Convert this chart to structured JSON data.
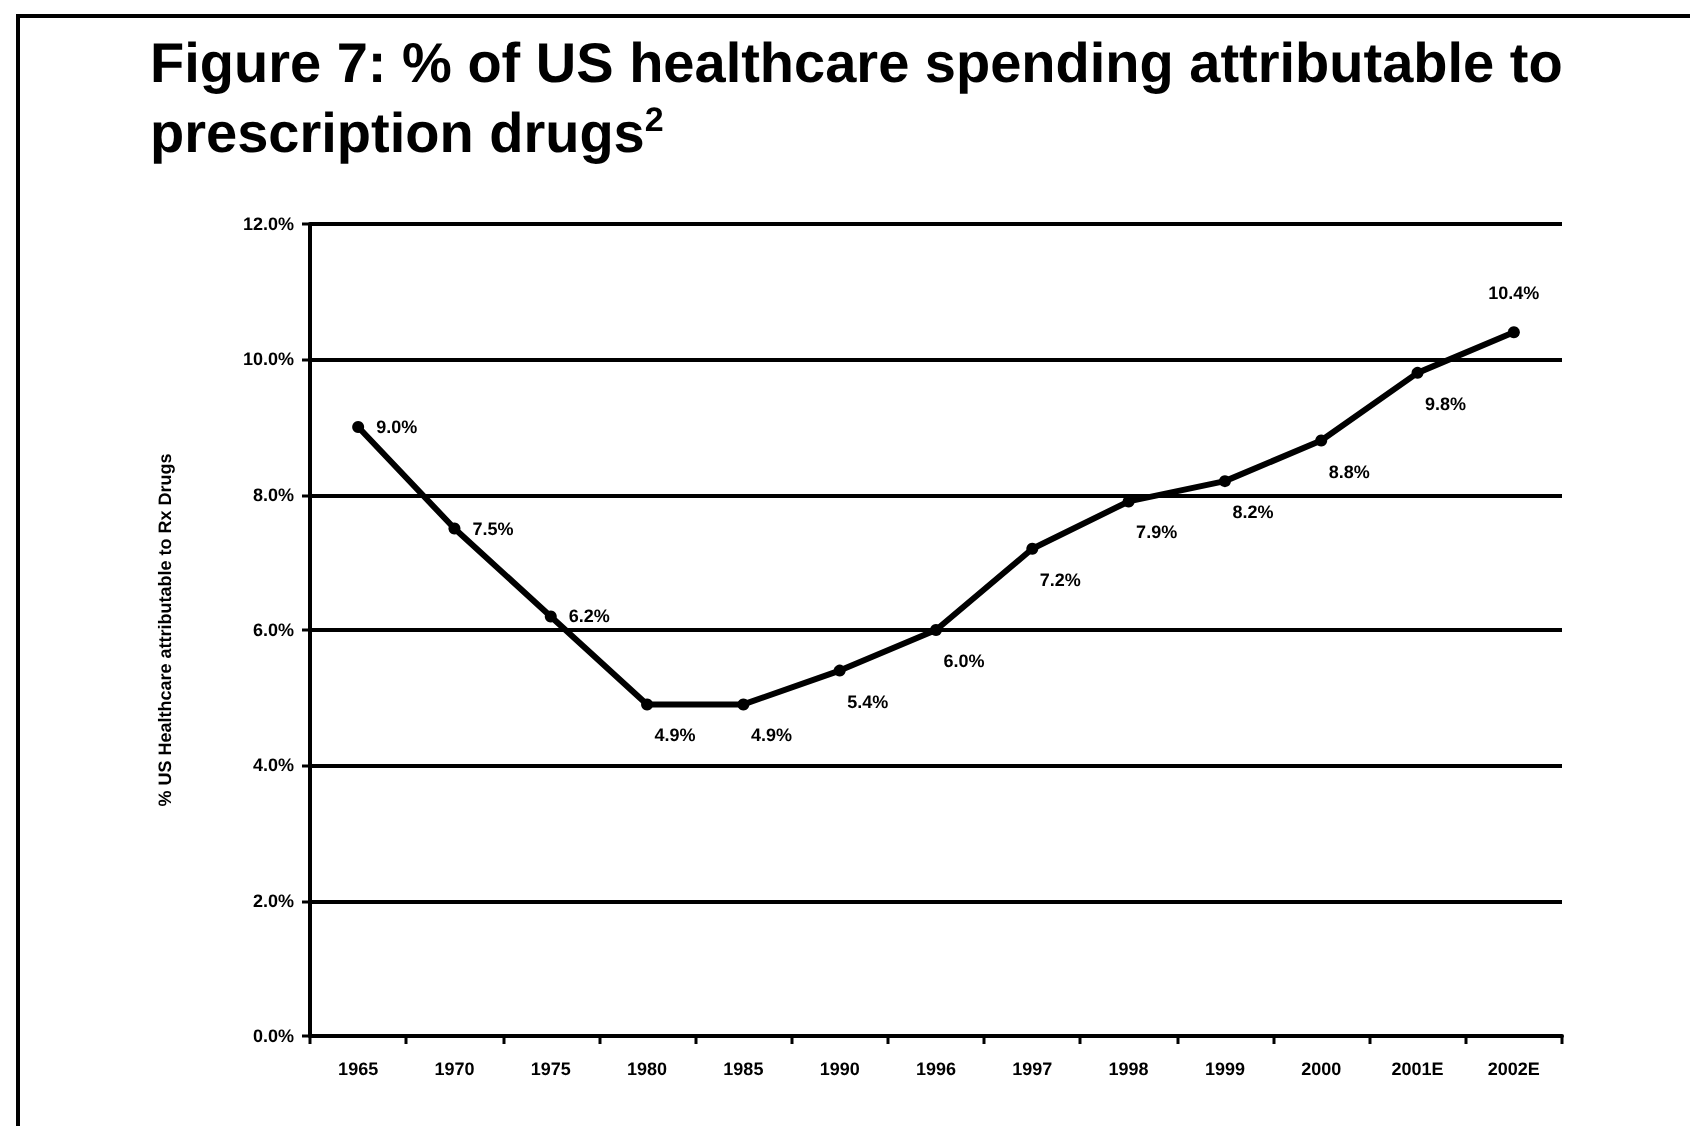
{
  "chart_data": {
    "type": "line",
    "title": "Figure 7: % of US healthcare spending attributable to prescription drugs$^{2}$",
    "ylabel": "% US Healthcare attributable to Rx Drugs",
    "categories": [
      "1965",
      "1970",
      "1975",
      "1980",
      "1985",
      "1990",
      "1996",
      "1997",
      "1998",
      "1999",
      "2000",
      "2001E",
      "2002E"
    ],
    "series": [
      {
        "color": "#000000",
        "values": [
          9.0,
          7.5,
          6.2,
          4.9,
          4.9,
          5.4,
          6.0,
          7.2,
          7.9,
          8.2,
          8.8,
          9.8,
          10.4
        ],
        "value_labels": [
          "9.0%",
          "7.5%",
          "6.2%",
          "4.9%",
          "4.9%",
          "5.4%",
          "6.0%",
          "7.2%",
          "7.9%",
          "8.2%",
          "8.8%",
          "9.8%",
          "10.4%"
        ]
      }
    ],
    "ylim": [
      0,
      12
    ],
    "yticks": [
      {
        "value": 0,
        "label": "0.0%"
      },
      {
        "value": 2,
        "label": "2.0%"
      },
      {
        "value": 4,
        "label": "4.0%"
      },
      {
        "value": 6,
        "label": "6.0%"
      },
      {
        "value": 8,
        "label": "8.0%"
      },
      {
        "value": 10,
        "label": "10.0%"
      },
      {
        "value": 12,
        "label": "12.0%"
      }
    ],
    "grid": "y",
    "marker": "circle",
    "line_style": "solid"
  }
}
